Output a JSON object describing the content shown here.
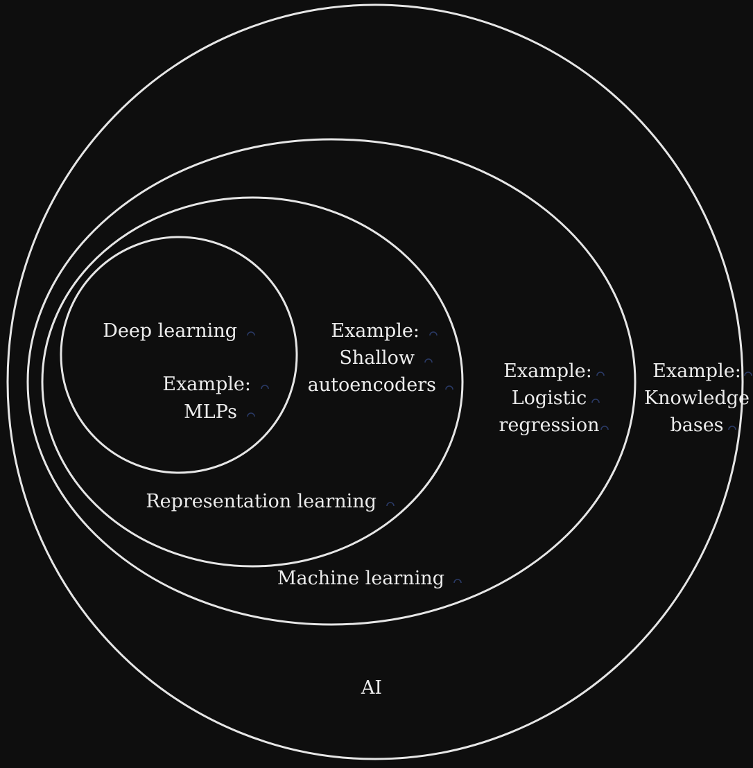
{
  "colors": {
    "background": "#0e0e0e",
    "ring": "#e6e6e6",
    "text": "#ececec",
    "marker": "#2a3a66"
  },
  "sets": {
    "ai": {
      "title": "AI",
      "example_lines": [
        "Example:",
        "Knowledge",
        "bases"
      ]
    },
    "machine_learning": {
      "title": "Machine learning",
      "example_lines": [
        "Example:",
        "Logistic",
        "regression"
      ]
    },
    "representation_learning": {
      "title": "Representation learning",
      "example_lines": [
        "Example:",
        "Shallow",
        "autoencoders"
      ]
    },
    "deep_learning": {
      "title": "Deep learning",
      "example_lines": [
        "Example:",
        "MLPs"
      ]
    }
  },
  "marker_icon": "loop-glyph-icon"
}
